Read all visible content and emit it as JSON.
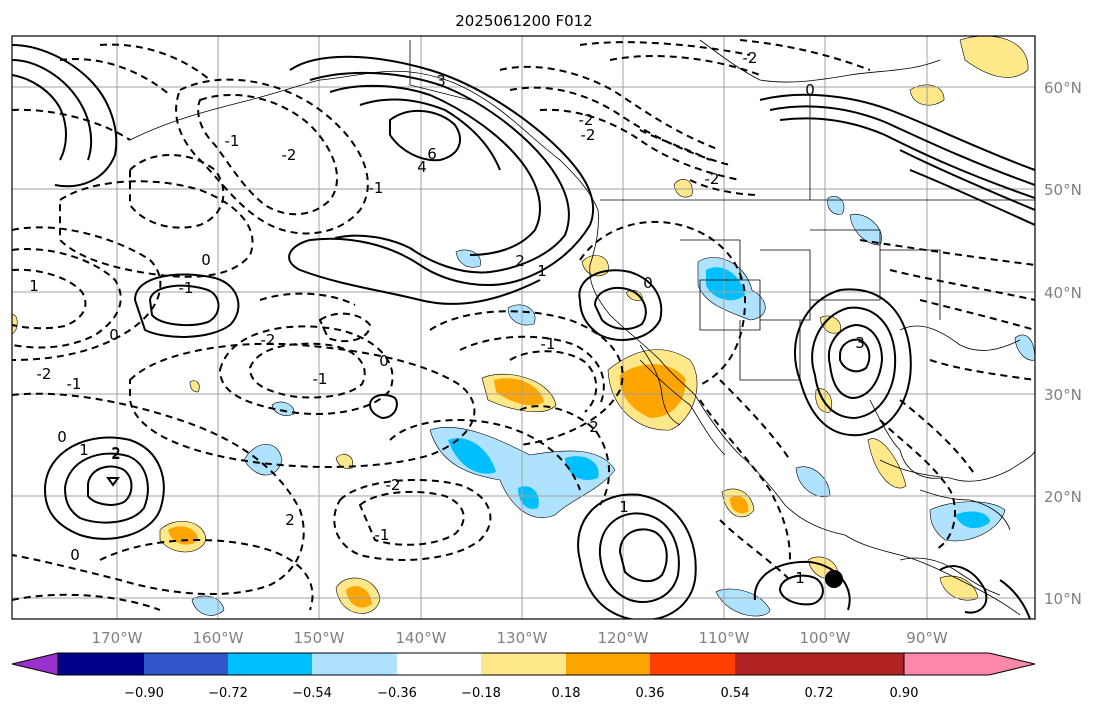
{
  "title": "2025061200 F012",
  "lon_labels": [
    "170°W",
    "160°W",
    "150°W",
    "140°W",
    "130°W",
    "120°W",
    "110°W",
    "100°W",
    "90°W"
  ],
  "lat_labels": [
    "60°N",
    "50°N",
    "40°N",
    "30°N",
    "20°N",
    "10°N"
  ],
  "colorbar": {
    "colors": [
      "#9b30d0",
      "#00008b",
      "#3355cc",
      "#00bfff",
      "#aee2ff",
      "#ffffff",
      "#ffe88a",
      "#ffa500",
      "#ff4000",
      "#b22222",
      "#ff88aa"
    ],
    "tick_labels": [
      "−0.90",
      "−0.72",
      "−0.54",
      "−0.36",
      "−0.18",
      "0.18",
      "0.36",
      "0.54",
      "0.72",
      "0.90"
    ]
  },
  "contour_labels": [
    "3",
    "6",
    "4",
    "1",
    "2",
    "-2",
    "-1",
    "0",
    "2",
    "0",
    "-1",
    "-2",
    "-1",
    "0",
    "3",
    "1",
    "-1",
    "0",
    "-2",
    "-2",
    "1",
    "2",
    "-2",
    "-1",
    "0",
    "2",
    "-1",
    "1",
    "-2",
    "2",
    "0",
    "1",
    "-2",
    "-1",
    "-2",
    "0"
  ],
  "marker": "filled-circle"
}
